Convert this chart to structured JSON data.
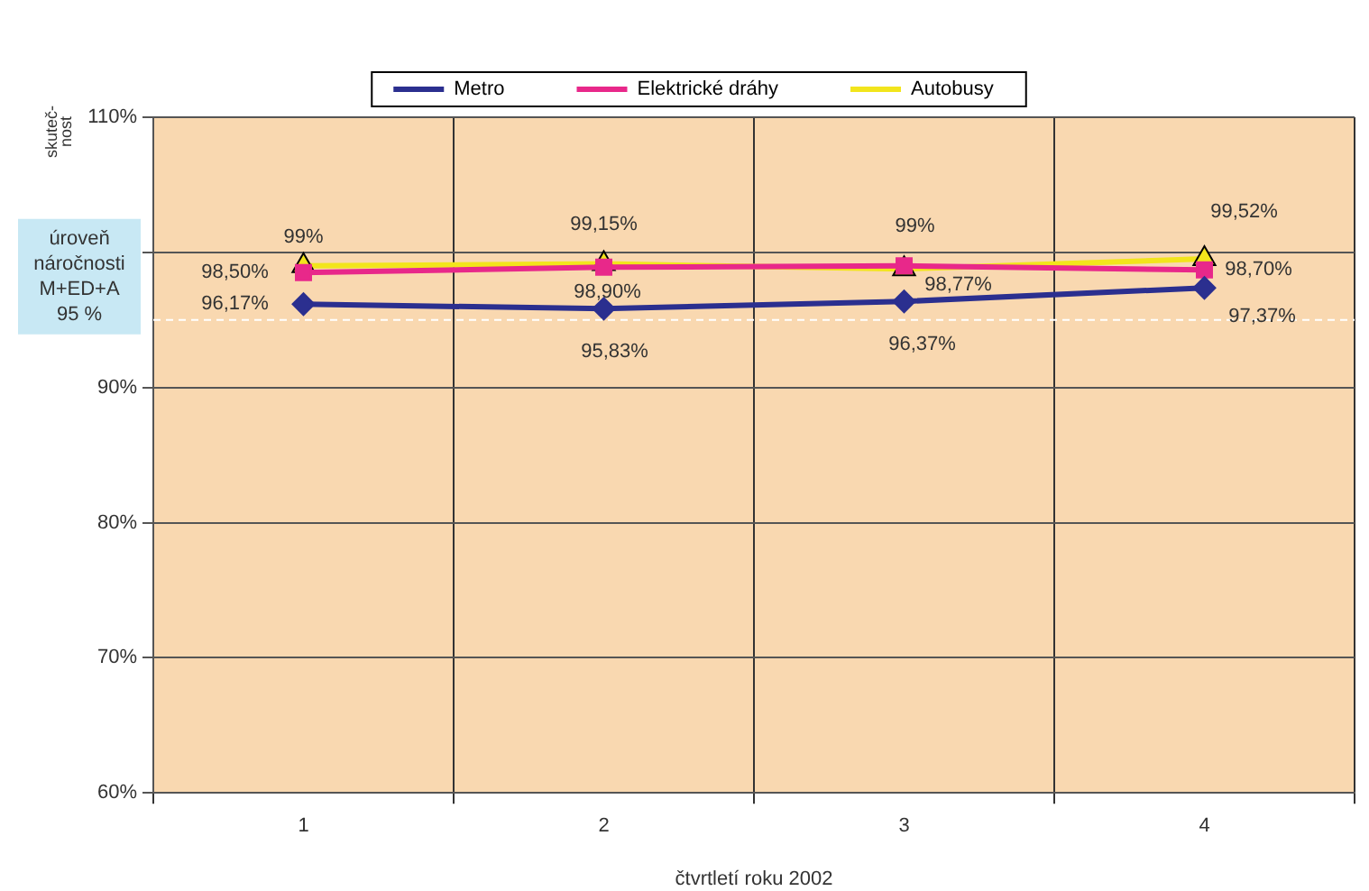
{
  "chart_data": {
    "type": "line",
    "xlabel": "čtvrtletí roku 2002",
    "ylabel": "skuteč-nost",
    "categories": [
      "1",
      "2",
      "3",
      "4"
    ],
    "series": [
      {
        "name": "Metro",
        "color": "#2b2f8f",
        "marker": "diamond",
        "values": [
          96.17,
          95.83,
          96.37,
          97.37
        ],
        "value_labels": [
          "96,17%",
          "95,83%",
          "96,37%",
          "97,37%"
        ]
      },
      {
        "name": "Elektrické dráhy",
        "color": "#e8288a",
        "marker": "square",
        "values": [
          98.5,
          98.9,
          99,
          98.7
        ],
        "value_labels": [
          "98,50%",
          "98,90%",
          "99%",
          "98,70%"
        ]
      },
      {
        "name": "Autobusy",
        "color": "#f2e51c",
        "marker": "triangle",
        "values": [
          99,
          99.15,
          98.77,
          99.52
        ],
        "value_labels": [
          "99%",
          "99,15%",
          "98,77%",
          "99,52%"
        ]
      }
    ],
    "ylim": [
      60,
      110
    ],
    "yticks": [
      {
        "value": 60,
        "label": "60%"
      },
      {
        "value": 70,
        "label": "70%"
      },
      {
        "value": 80,
        "label": "80%"
      },
      {
        "value": 90,
        "label": "90%"
      },
      {
        "value": 100,
        "label": null
      },
      {
        "value": 110,
        "label": "110%"
      }
    ],
    "ref_lines": [
      {
        "axis": "y",
        "value": 95,
        "label": "úroveň náročnosti M+ED+A 95 %",
        "color": "#ffffff",
        "line_style": "dashed"
      }
    ],
    "grid": true,
    "legend": "top"
  }
}
